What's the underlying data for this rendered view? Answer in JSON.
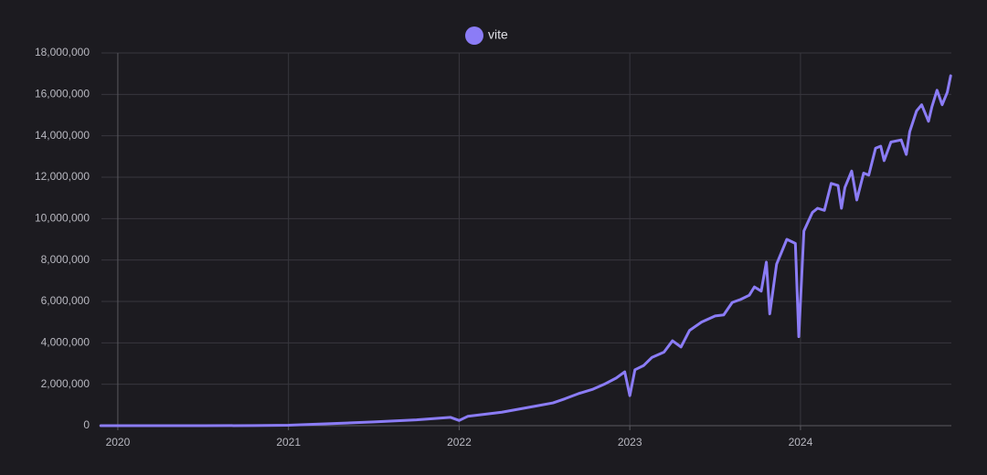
{
  "chart_data": {
    "type": "line",
    "x": [
      2019.9,
      2020.2,
      2020.5,
      2020.8,
      2021.0,
      2021.25,
      2021.5,
      2021.75,
      2021.95,
      2022.0,
      2022.05,
      2022.15,
      2022.25,
      2022.35,
      2022.45,
      2022.55,
      2022.62,
      2022.7,
      2022.78,
      2022.85,
      2022.92,
      2022.97,
      2023.0,
      2023.03,
      2023.08,
      2023.13,
      2023.2,
      2023.25,
      2023.3,
      2023.35,
      2023.42,
      2023.5,
      2023.55,
      2023.6,
      2023.65,
      2023.7,
      2023.73,
      2023.77,
      2023.8,
      2023.82,
      2023.86,
      2023.92,
      2023.97,
      2023.99,
      2024.02,
      2024.07,
      2024.1,
      2024.14,
      2024.18,
      2024.22,
      2024.24,
      2024.26,
      2024.3,
      2024.33,
      2024.37,
      2024.4,
      2024.44,
      2024.47,
      2024.49,
      2024.53,
      2024.59,
      2024.62,
      2024.64,
      2024.68,
      2024.71,
      2024.75,
      2024.77,
      2024.8,
      2024.83,
      2024.86,
      2024.88
    ],
    "series": [
      {
        "name": "vite",
        "color": "#8b7cf6",
        "values": [
          0,
          0,
          0,
          5000,
          20000,
          100000,
          180000,
          280000,
          400000,
          250000,
          450000,
          550000,
          650000,
          800000,
          950000,
          1100000,
          1300000,
          1550000,
          1750000,
          2000000,
          2300000,
          2600000,
          1450000,
          2700000,
          2900000,
          3300000,
          3550000,
          4100000,
          3800000,
          4600000,
          5000000,
          5300000,
          5350000,
          5950000,
          6100000,
          6300000,
          6700000,
          6500000,
          7900000,
          5400000,
          7800000,
          9000000,
          8800000,
          4300000,
          9400000,
          10300000,
          10500000,
          10400000,
          11700000,
          11600000,
          10500000,
          11500000,
          12300000,
          10900000,
          12200000,
          12100000,
          13400000,
          13500000,
          12800000,
          13700000,
          13800000,
          13100000,
          14200000,
          15200000,
          15500000,
          14700000,
          15400000,
          16200000,
          15500000,
          16100000,
          16900000
        ]
      }
    ],
    "xlim": [
      2019.904,
      2024.884
    ],
    "xticks": [
      2020,
      2021,
      2022,
      2023,
      2024
    ],
    "ylim": [
      0,
      18000000
    ],
    "yticks": [
      0,
      {
        "value": 2000000,
        "label": "2,000,000"
      },
      {
        "value": 4000000,
        "label": "4,000,000"
      },
      {
        "value": 6000000,
        "label": "6,000,000"
      },
      {
        "value": 8000000,
        "label": "8,000,000"
      },
      {
        "value": 10000000,
        "label": "10,000,000"
      },
      {
        "value": 12000000,
        "label": "12,000,000"
      },
      {
        "value": 14000000,
        "label": "14,000,000"
      },
      {
        "value": 16000000,
        "label": "16,000,000"
      },
      {
        "value": 18000000,
        "label": "18,000,000"
      }
    ],
    "grid": true
  }
}
